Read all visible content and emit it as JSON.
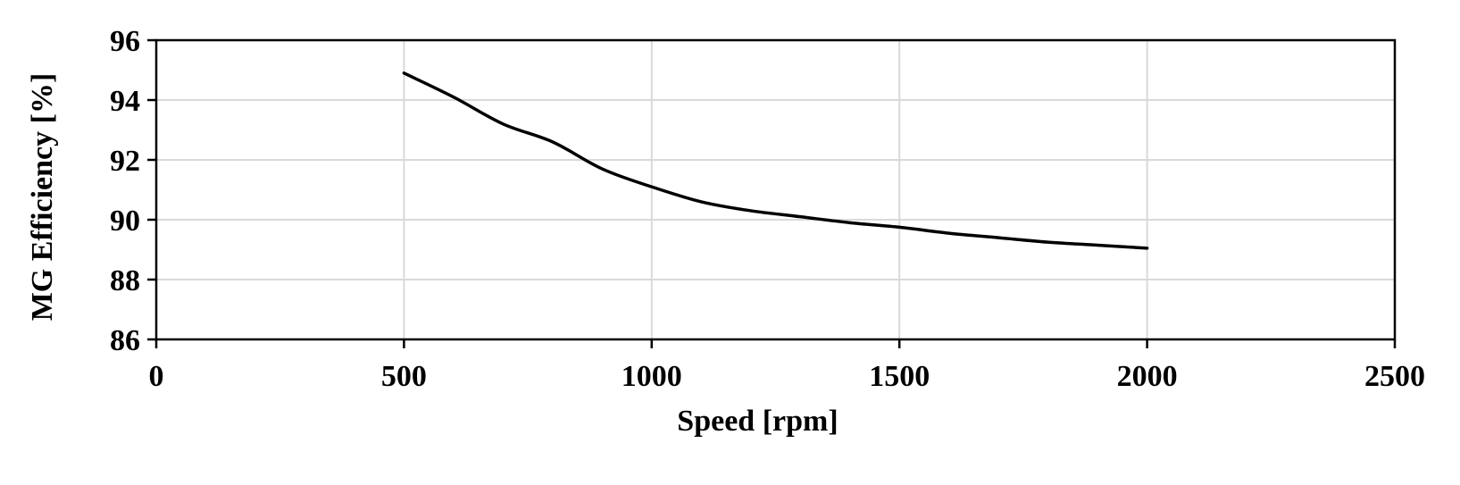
{
  "chart_data": {
    "type": "line",
    "title": "",
    "xlabel": "Speed [rpm]",
    "ylabel": "MG Efficiency [%]",
    "xlim": [
      0,
      2500
    ],
    "ylim": [
      86,
      96
    ],
    "x_ticks": [
      0,
      500,
      1000,
      1500,
      2000,
      2500
    ],
    "y_ticks": [
      86,
      88,
      90,
      92,
      94,
      96
    ],
    "grid": true,
    "legend": "none",
    "series": [
      {
        "color": "#000000",
        "x": [
          500,
          600,
          700,
          800,
          900,
          1000,
          1100,
          1200,
          1300,
          1400,
          1500,
          1600,
          1700,
          1800,
          1900,
          2000
        ],
        "y": [
          94.9,
          94.1,
          93.2,
          92.6,
          91.7,
          91.1,
          90.6,
          90.3,
          90.1,
          89.9,
          89.75,
          89.55,
          89.4,
          89.25,
          89.15,
          89.05
        ]
      }
    ]
  }
}
